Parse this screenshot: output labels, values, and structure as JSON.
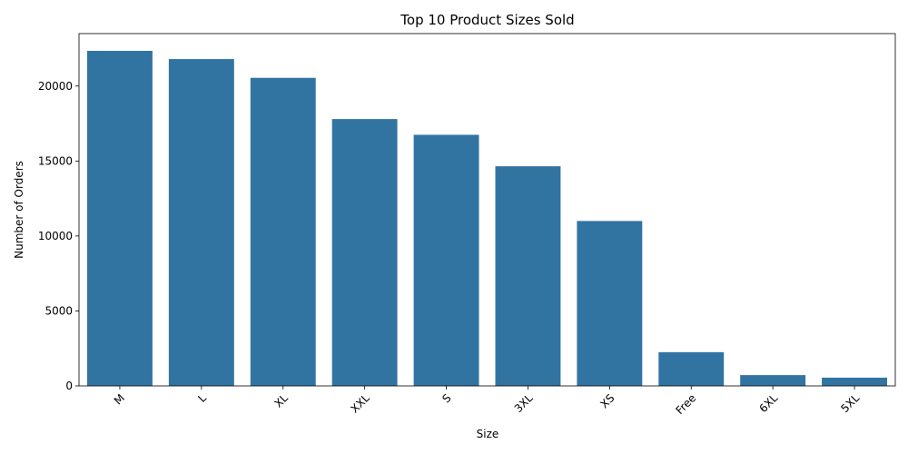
{
  "chart_data": {
    "type": "bar",
    "title": "Top 10 Product Sizes Sold",
    "xlabel": "Size",
    "ylabel": "Number of Orders",
    "categories": [
      "M",
      "L",
      "XL",
      "XXL",
      "S",
      "3XL",
      "XS",
      "Free",
      "6XL",
      "5XL"
    ],
    "values": [
      22350,
      21800,
      20550,
      17800,
      16750,
      14650,
      11000,
      2250,
      720,
      550
    ],
    "ylim": [
      0,
      23500
    ],
    "yticks": [
      0,
      5000,
      10000,
      15000,
      20000
    ],
    "ytick_labels": [
      "0",
      "5000",
      "10000",
      "15000",
      "20000"
    ],
    "bar_color": "#3274a1",
    "grid": false,
    "xtick_rotation": 45
  }
}
